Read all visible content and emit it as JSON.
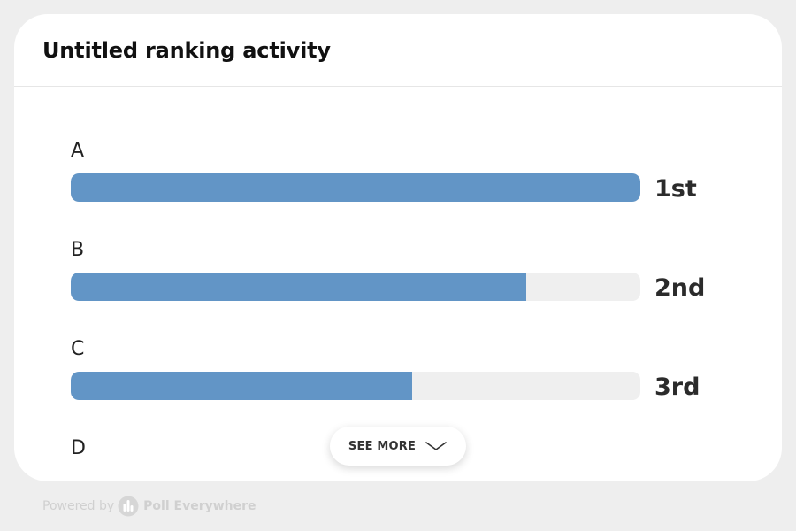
{
  "header": {
    "title": "Untitled ranking activity"
  },
  "ranking": {
    "items": [
      {
        "label": "A",
        "rank": "1st",
        "fill_percent": 100
      },
      {
        "label": "B",
        "rank": "2nd",
        "fill_percent": 80
      },
      {
        "label": "C",
        "rank": "3rd",
        "fill_percent": 60
      },
      {
        "label": "D"
      }
    ]
  },
  "see_more": {
    "label": "SEE MORE",
    "icon": "chevron-down-icon"
  },
  "footer": {
    "powered_by": "Powered by",
    "brand": "Poll Everywhere",
    "logo_icon": "poll-everywhere-logo-icon"
  },
  "colors": {
    "bar_fill": "#6295c6",
    "bar_track": "#efefef",
    "page_background": "#eeeeee",
    "card_background": "#ffffff"
  }
}
